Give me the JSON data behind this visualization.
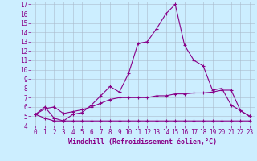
{
  "xlabel": "Windchill (Refroidissement éolien,°C)",
  "bg_color": "#cceeff",
  "grid_color": "#aabbcc",
  "line_color": "#880088",
  "x_values": [
    0,
    1,
    2,
    3,
    4,
    5,
    6,
    7,
    8,
    9,
    10,
    11,
    12,
    13,
    14,
    15,
    16,
    17,
    18,
    19,
    20,
    21,
    22,
    23
  ],
  "line1_y": [
    5.2,
    6.0,
    4.8,
    4.5,
    5.2,
    5.4,
    6.2,
    7.2,
    8.2,
    7.6,
    9.6,
    12.8,
    13.0,
    14.4,
    16.0,
    17.0,
    12.6,
    11.0,
    10.4,
    7.8,
    8.0,
    6.2,
    5.6,
    5.0
  ],
  "line2_y": [
    5.2,
    5.8,
    6.0,
    5.3,
    5.5,
    5.7,
    6.0,
    6.4,
    6.8,
    7.0,
    7.0,
    7.0,
    7.0,
    7.2,
    7.2,
    7.4,
    7.4,
    7.5,
    7.5,
    7.6,
    7.8,
    7.8,
    5.6,
    5.0
  ],
  "line3_y": [
    5.2,
    4.8,
    4.5,
    4.5,
    4.5,
    4.5,
    4.5,
    4.5,
    4.5,
    4.5,
    4.5,
    4.5,
    4.5,
    4.5,
    4.5,
    4.5,
    4.5,
    4.5,
    4.5,
    4.5,
    4.5,
    4.5,
    4.5,
    4.5
  ],
  "ylim_min": 4,
  "ylim_max": 17,
  "xlim_min": 0,
  "xlim_max": 23,
  "yticks": [
    4,
    5,
    6,
    7,
    8,
    9,
    10,
    11,
    12,
    13,
    14,
    15,
    16,
    17
  ],
  "xticks": [
    0,
    1,
    2,
    3,
    4,
    5,
    6,
    7,
    8,
    9,
    10,
    11,
    12,
    13,
    14,
    15,
    16,
    17,
    18,
    19,
    20,
    21,
    22,
    23
  ],
  "tick_fontsize": 5.5,
  "xlabel_fontsize": 6,
  "marker_size": 3,
  "lw": 0.8
}
